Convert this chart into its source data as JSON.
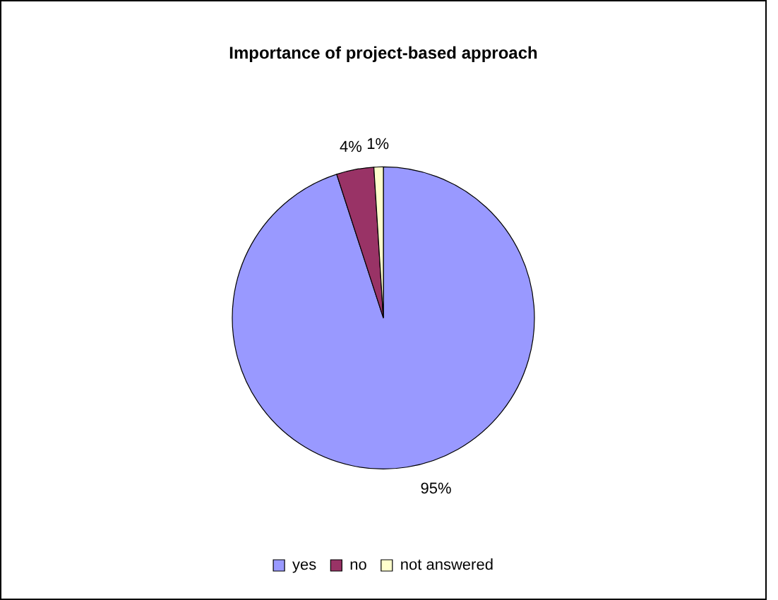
{
  "chart_data": {
    "type": "pie",
    "title": "Importance of project-based approach",
    "categories": [
      "yes",
      "no",
      "not answered"
    ],
    "values": [
      95,
      4,
      1
    ],
    "colors": [
      "#9999ff",
      "#993366",
      "#ffffcc"
    ],
    "value_labels": [
      "95%",
      "4%",
      "1%"
    ],
    "legend": "bottom"
  }
}
